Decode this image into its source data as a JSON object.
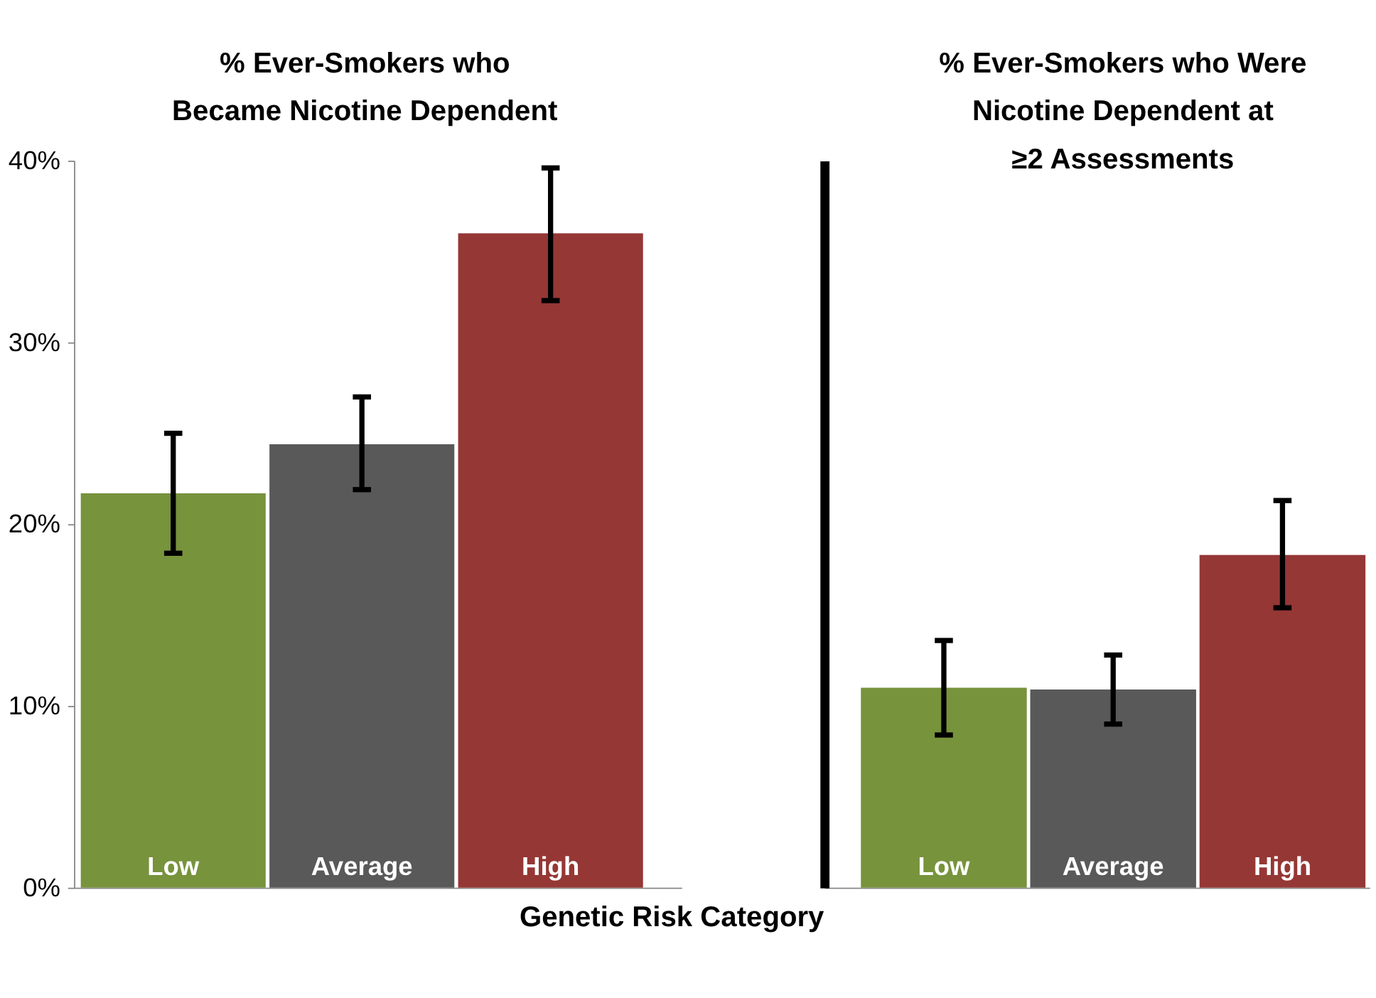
{
  "chart_data": [
    {
      "type": "bar",
      "title": "% Ever-Smokers who\nBecame Nicotine Dependent",
      "xlabel": "Genetic Risk Category",
      "categories": [
        "Low",
        "Average",
        "High"
      ],
      "values": [
        21.7,
        24.4,
        36.0
      ],
      "colors": [
        "#77933c",
        "#595959",
        "#953735"
      ],
      "errors": [
        [
          18.4,
          25.0
        ],
        [
          21.9,
          27.0
        ],
        [
          32.3,
          39.6
        ]
      ],
      "ylim": [
        0,
        40
      ],
      "yticks": [
        {
          "value": 0,
          "label": "0%"
        },
        {
          "value": 10,
          "label": "10%"
        },
        {
          "value": 20,
          "label": "20%"
        },
        {
          "value": 30,
          "label": "30%"
        },
        {
          "value": 40,
          "label": "40%"
        }
      ]
    },
    {
      "type": "bar",
      "title": "% Ever-Smokers who Were\nNicotine Dependent at\n≥2 Assessments",
      "categories": [
        "Low",
        "Average",
        "High"
      ],
      "values": [
        11.0,
        10.9,
        18.3
      ],
      "colors": [
        "#77933c",
        "#595959",
        "#953735"
      ],
      "errors": [
        [
          8.4,
          13.6
        ],
        [
          9.0,
          12.8
        ],
        [
          15.4,
          21.3
        ]
      ],
      "ylim": [
        0,
        40
      ],
      "tick_labels": "x"
    }
  ]
}
